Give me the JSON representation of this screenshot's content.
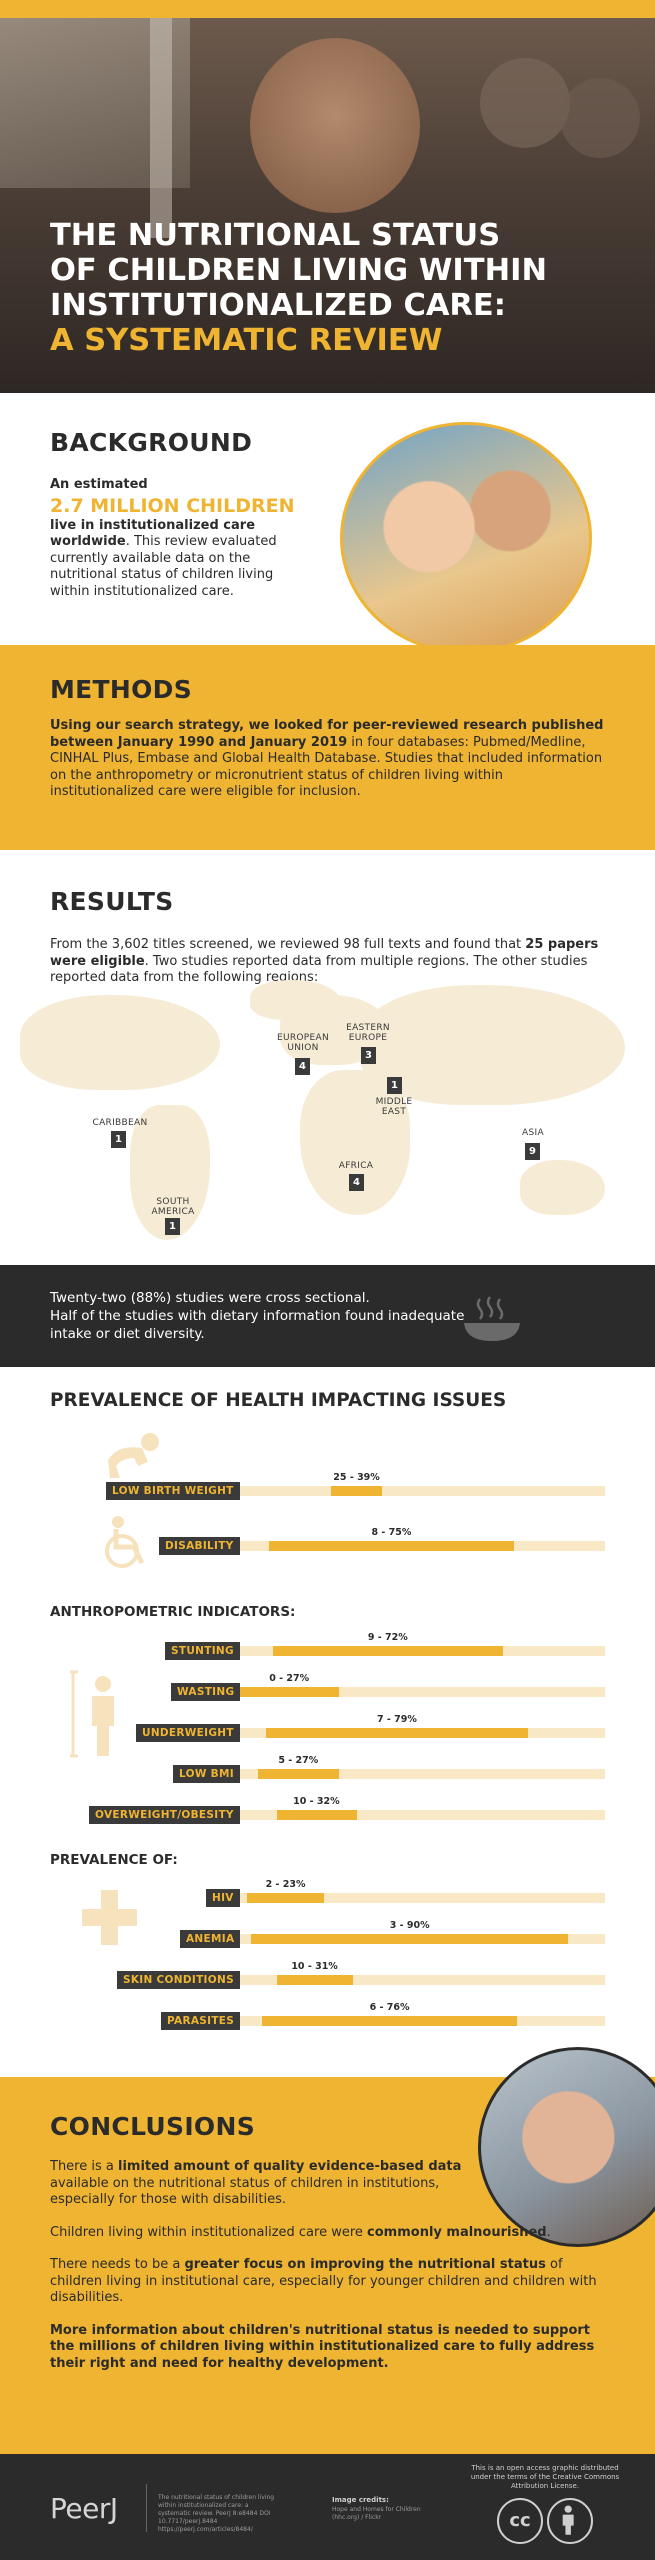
{
  "hero": {
    "title_line1": "THE NUTRITIONAL STATUS",
    "title_line2": "OF CHILDREN LIVING WITHIN",
    "title_line3": "INSTITUTIONALIZED CARE:",
    "title_line4": "A SYSTEMATIC REVIEW"
  },
  "background": {
    "title": "BACKGROUND",
    "intro": "An estimated",
    "big_number": "2.7 MILLION CHILDREN",
    "bold_text": "live in institutionalized care worldwide",
    "rest_text": ". This review evaluated currently available data on the nutritional status of children living within institutionalized care."
  },
  "methods": {
    "title": "METHODS",
    "bold_text": "Using our search strategy, we looked for peer-reviewed research published between January 1990 and January 2019",
    "rest_text": " in four databases: Pubmed/Medline, CINHAL Plus, Embase and Global Health Database. Studies that included information on the anthropometry or micronutrient status of children living within institutionalized care were eligible for inclusion."
  },
  "results": {
    "title": "RESULTS",
    "text1": "From the 3,602 titles screened, we reviewed 98 full texts and found that ",
    "bold_text": "25 papers were eligible",
    "text2": ". Two studies reported data from multiple regions. The other studies reported data from the following regions:",
    "regions": [
      {
        "name": "EUROPEAN UNION",
        "line1": "EUROPEAN",
        "line2": "UNION",
        "count": "4"
      },
      {
        "name": "EASTERN EUROPE",
        "line1": "EASTERN",
        "line2": "EUROPE",
        "count": "3"
      },
      {
        "name": "MIDDLE EAST",
        "line1": "MIDDLE",
        "line2": "EAST",
        "count": "1"
      },
      {
        "name": "CARIBBEAN",
        "line1": "CARIBBEAN",
        "line2": "",
        "count": "1"
      },
      {
        "name": "ASIA",
        "line1": "ASIA",
        "line2": "",
        "count": "9"
      },
      {
        "name": "AFRICA",
        "line1": "AFRICA",
        "line2": "",
        "count": "4"
      },
      {
        "name": "SOUTH AMERICA",
        "line1": "SOUTH",
        "line2": "AMERICA",
        "count": "1"
      }
    ]
  },
  "summary": {
    "line1": "Twenty-two (88%) studies were cross sectional.",
    "line2": "Half of the studies with dietary information found inadequate intake or diet diversity.",
    "icon": "bowl-icon"
  },
  "prevalence": {
    "title": "PREVALENCE OF HEALTH IMPACTING ISSUES",
    "health_rows": [
      {
        "label": "LOW BIRTH WEIGHT",
        "range": "25 - 39%",
        "min": 25,
        "max": 39
      },
      {
        "label": "DISABILITY",
        "range": "8 - 75%",
        "min": 8,
        "max": 75
      }
    ],
    "anthro_title": "ANTHROPOMETRIC INDICATORS:",
    "anthro_rows": [
      {
        "label": "STUNTING",
        "range": "9 - 72%",
        "min": 9,
        "max": 72
      },
      {
        "label": "WASTING",
        "range": "0 - 27%",
        "min": 0,
        "max": 27
      },
      {
        "label": "UNDERWEIGHT",
        "range": "7 - 79%",
        "min": 7,
        "max": 79
      },
      {
        "label": "LOW BMI",
        "range": "5 - 27%",
        "min": 5,
        "max": 27
      },
      {
        "label": "OVERWEIGHT/OBESITY",
        "range": "10 - 32%",
        "min": 10,
        "max": 32
      }
    ],
    "prev_of_title": "PREVALENCE OF:",
    "prev_rows": [
      {
        "label": "HIV",
        "range": "2 - 23%",
        "min": 2,
        "max": 23
      },
      {
        "label": "ANEMIA",
        "range": "3 - 90%",
        "min": 3,
        "max": 90
      },
      {
        "label": "SKIN CONDITIONS",
        "range": "10 - 31%",
        "min": 10,
        "max": 31
      },
      {
        "label": "PARASITES",
        "range": "6 - 76%",
        "min": 6,
        "max": 76
      }
    ],
    "icons": [
      "baby-icon",
      "wheelchair-icon",
      "person-height-icon",
      "medical-cross-icon"
    ]
  },
  "conclusions": {
    "title": "CONCLUSIONS",
    "p1_a": "There is a ",
    "p1_b": "limited amount of quality evidence-based data",
    "p1_c": " available on the nutritional status of children in institutions, especially for those with disabilities.",
    "p2_a": "Children living within institutionalized care were ",
    "p2_b": "commonly malnourished",
    "p2_c": ".",
    "p3_a": "There needs to be a ",
    "p3_b": "greater focus on improving the nutritional status",
    "p3_c": " of children living in institutional care, especially for younger children and children with disabilities.",
    "p4": "More information about children's nutritional status is needed to support the millions of children living within institutionalized care to fully address their right and need for healthy development."
  },
  "footer": {
    "logo": "PeerJ",
    "citation": "The nutritional status of children living within institutionalized care: a systematic review. PeerJ 8:e8484 DOI 10.7717/peerj.8484 https://peerj.com/articles/8484/",
    "credits_title": "Image credits:",
    "credits_text": "Hope and Homes for Children (hhc.org) / Flickr",
    "license_text": "This is an open access graphic distributed under the terms of the Creative Commons Attribution License.",
    "cc_label": "cc"
  },
  "colors": {
    "accent": "#EFB431",
    "dark": "#2b2b2b",
    "track": "#f8e8c6"
  }
}
